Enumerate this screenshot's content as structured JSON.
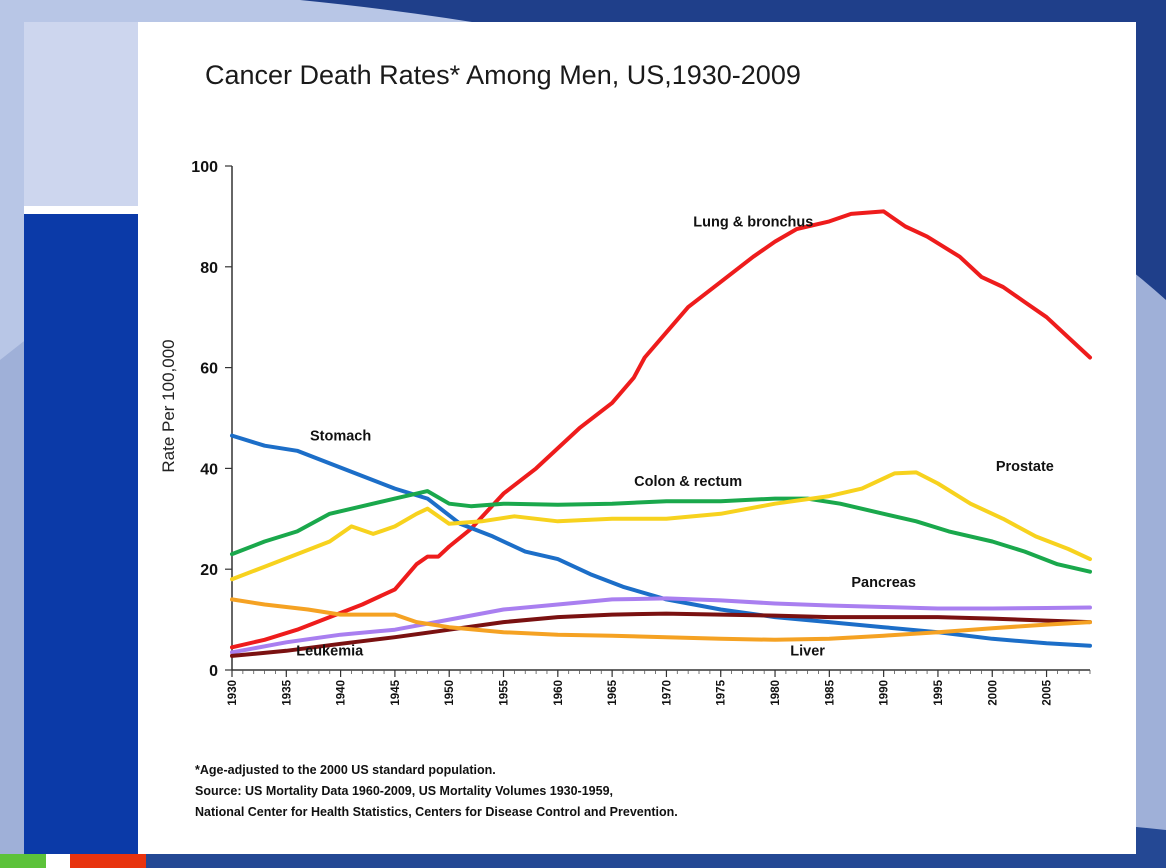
{
  "chart_data": {
    "type": "line",
    "title": "Cancer Death Rates* Among Men, US,1930-2009",
    "ylabel": "Rate Per 100,000",
    "xlabel": "",
    "xlim": [
      1930,
      2009
    ],
    "ylim": [
      0,
      100
    ],
    "yticks": [
      0,
      20,
      40,
      60,
      80,
      100
    ],
    "xticks": [
      "1930",
      "1935",
      "1940",
      "1945",
      "1950",
      "1955",
      "1960",
      "1965",
      "1970",
      "1975",
      "1980",
      "1985",
      "1990",
      "1995",
      "2000",
      "2005"
    ],
    "grid": false,
    "series": [
      {
        "name": "Lung & bronchus",
        "color": "#ee1c1c",
        "label_at": [
          1978,
          88
        ],
        "points": [
          [
            1930,
            4.5
          ],
          [
            1933,
            6
          ],
          [
            1936,
            8
          ],
          [
            1939,
            10.5
          ],
          [
            1942,
            13
          ],
          [
            1945,
            16
          ],
          [
            1947,
            21
          ],
          [
            1948,
            22.5
          ],
          [
            1949,
            22.5
          ],
          [
            1950,
            24.5
          ],
          [
            1952,
            28
          ],
          [
            1955,
            35
          ],
          [
            1958,
            40
          ],
          [
            1962,
            48
          ],
          [
            1965,
            53
          ],
          [
            1967,
            58
          ],
          [
            1968,
            62
          ],
          [
            1970,
            67
          ],
          [
            1972,
            72
          ],
          [
            1975,
            77
          ],
          [
            1978,
            82
          ],
          [
            1980,
            85
          ],
          [
            1982,
            87.5
          ],
          [
            1985,
            89
          ],
          [
            1987,
            90.5
          ],
          [
            1990,
            91
          ],
          [
            1992,
            88
          ],
          [
            1994,
            86
          ],
          [
            1997,
            82
          ],
          [
            1999,
            78
          ],
          [
            2001,
            76
          ],
          [
            2003,
            73
          ],
          [
            2005,
            70
          ],
          [
            2007,
            66
          ],
          [
            2009,
            62
          ]
        ]
      },
      {
        "name": "Stomach",
        "color": "#1c6ec8",
        "label_at": [
          1940,
          45.5
        ],
        "points": [
          [
            1930,
            46.5
          ],
          [
            1933,
            44.5
          ],
          [
            1936,
            43.5
          ],
          [
            1939,
            41
          ],
          [
            1942,
            38.5
          ],
          [
            1945,
            36
          ],
          [
            1948,
            34
          ],
          [
            1951,
            29
          ],
          [
            1954,
            26.5
          ],
          [
            1957,
            23.5
          ],
          [
            1960,
            22
          ],
          [
            1963,
            19
          ],
          [
            1966,
            16.5
          ],
          [
            1970,
            14
          ],
          [
            1975,
            12
          ],
          [
            1980,
            10.5
          ],
          [
            1985,
            9.5
          ],
          [
            1990,
            8.5
          ],
          [
            1995,
            7.5
          ],
          [
            2000,
            6.2
          ],
          [
            2005,
            5.3
          ],
          [
            2009,
            4.8
          ]
        ]
      },
      {
        "name": "Colon & rectum",
        "color": "#1aa84c",
        "label_at": [
          1972,
          36.5
        ],
        "points": [
          [
            1930,
            23
          ],
          [
            1933,
            25.5
          ],
          [
            1936,
            27.5
          ],
          [
            1939,
            31
          ],
          [
            1942,
            32.5
          ],
          [
            1945,
            34
          ],
          [
            1948,
            35.5
          ],
          [
            1950,
            33
          ],
          [
            1952,
            32.5
          ],
          [
            1955,
            33
          ],
          [
            1960,
            32.8
          ],
          [
            1965,
            33
          ],
          [
            1970,
            33.5
          ],
          [
            1975,
            33.5
          ],
          [
            1980,
            34
          ],
          [
            1983,
            34
          ],
          [
            1986,
            33
          ],
          [
            1990,
            31
          ],
          [
            1993,
            29.5
          ],
          [
            1996,
            27.5
          ],
          [
            2000,
            25.5
          ],
          [
            2003,
            23.5
          ],
          [
            2006,
            21
          ],
          [
            2009,
            19.5
          ]
        ]
      },
      {
        "name": "Prostate",
        "color": "#f7d21e",
        "label_at": [
          2003,
          39.5
        ],
        "points": [
          [
            1930,
            18
          ],
          [
            1933,
            20.5
          ],
          [
            1936,
            23
          ],
          [
            1939,
            25.5
          ],
          [
            1941,
            28.5
          ],
          [
            1943,
            27
          ],
          [
            1945,
            28.5
          ],
          [
            1947,
            31
          ],
          [
            1948,
            32
          ],
          [
            1950,
            29
          ],
          [
            1953,
            29.5
          ],
          [
            1956,
            30.5
          ],
          [
            1960,
            29.5
          ],
          [
            1965,
            30
          ],
          [
            1970,
            30
          ],
          [
            1975,
            31
          ],
          [
            1980,
            33
          ],
          [
            1985,
            34.5
          ],
          [
            1988,
            36
          ],
          [
            1991,
            39
          ],
          [
            1993,
            39.2
          ],
          [
            1995,
            37
          ],
          [
            1998,
            33
          ],
          [
            2001,
            30
          ],
          [
            2004,
            26.5
          ],
          [
            2007,
            24
          ],
          [
            2009,
            22
          ]
        ]
      },
      {
        "name": "Pancreas",
        "color": "#a97ff0",
        "label_at": [
          1990,
          16.5
        ],
        "points": [
          [
            1930,
            3.5
          ],
          [
            1935,
            5.5
          ],
          [
            1940,
            7
          ],
          [
            1945,
            8
          ],
          [
            1950,
            10
          ],
          [
            1955,
            12
          ],
          [
            1960,
            13
          ],
          [
            1965,
            14
          ],
          [
            1970,
            14.2
          ],
          [
            1975,
            13.8
          ],
          [
            1980,
            13.2
          ],
          [
            1985,
            12.8
          ],
          [
            1990,
            12.5
          ],
          [
            1995,
            12.2
          ],
          [
            2000,
            12.2
          ],
          [
            2005,
            12.3
          ],
          [
            2009,
            12.4
          ]
        ]
      },
      {
        "name": "Leukemia",
        "color": "#7a1111",
        "label_at": [
          1939,
          2.9
        ],
        "points": [
          [
            1930,
            2.8
          ],
          [
            1935,
            3.8
          ],
          [
            1940,
            5.2
          ],
          [
            1945,
            6.5
          ],
          [
            1950,
            8
          ],
          [
            1955,
            9.5
          ],
          [
            1960,
            10.5
          ],
          [
            1965,
            11
          ],
          [
            1970,
            11.2
          ],
          [
            1975,
            11
          ],
          [
            1980,
            10.8
          ],
          [
            1985,
            10.5
          ],
          [
            1990,
            10.5
          ],
          [
            1995,
            10.5
          ],
          [
            2000,
            10.2
          ],
          [
            2005,
            9.8
          ],
          [
            2009,
            9.5
          ]
        ]
      },
      {
        "name": "Liver",
        "color": "#f5a223",
        "label_at": [
          1983,
          2.9
        ],
        "points": [
          [
            1930,
            14
          ],
          [
            1933,
            13
          ],
          [
            1937,
            12
          ],
          [
            1940,
            11
          ],
          [
            1943,
            11
          ],
          [
            1945,
            11
          ],
          [
            1947,
            9.5
          ],
          [
            1950,
            8.5
          ],
          [
            1955,
            7.5
          ],
          [
            1960,
            7
          ],
          [
            1965,
            6.8
          ],
          [
            1970,
            6.5
          ],
          [
            1975,
            6.2
          ],
          [
            1980,
            6
          ],
          [
            1985,
            6.2
          ],
          [
            1990,
            6.8
          ],
          [
            1995,
            7.5
          ],
          [
            2000,
            8.3
          ],
          [
            2005,
            9
          ],
          [
            2009,
            9.5
          ]
        ]
      }
    ]
  },
  "footnotes": {
    "line1": "*Age-adjusted to the 2000 US standard population.",
    "line2": "Source:  US Mortality Data 1960-2009, US Mortality Volumes 1930-1959,",
    "line3": "National Center for Health Statistics, Centers for Disease Control and Prevention."
  },
  "colors": {
    "slide_background": "#ffffff",
    "frame_blue": "#0b3aa8",
    "frame_light": "#cdd6ee"
  }
}
